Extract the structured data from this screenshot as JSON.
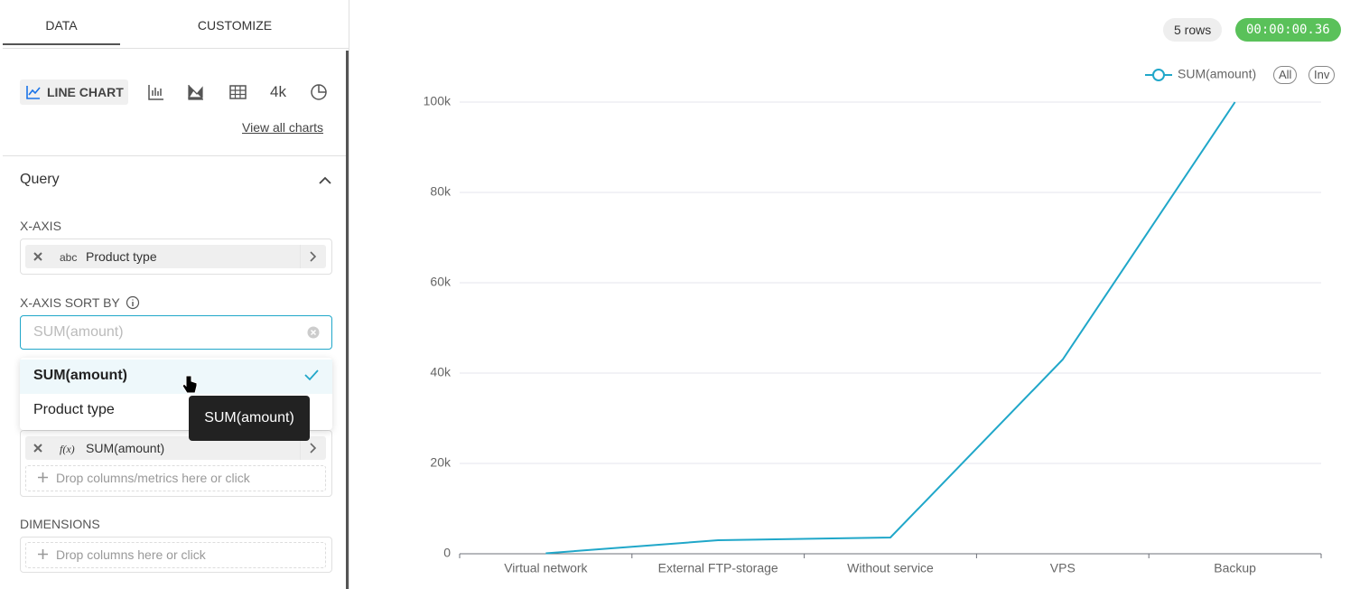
{
  "tabs": [
    "DATA",
    "CUSTOMIZE"
  ],
  "chart_picker": {
    "active": "LINE CHART",
    "other": "4k",
    "view_all": "View all charts"
  },
  "query": {
    "title": "Query",
    "x_axis_label": "X-AXIS",
    "x_axis_type": "abc",
    "x_axis_value": "Product type",
    "sort_label": "X-AXIS SORT BY",
    "sort_placeholder": "SUM(amount)",
    "sort_options": [
      "SUM(amount)",
      "Product type"
    ],
    "tooltip": "SUM(amount)",
    "metric_type": "f(x)",
    "metric": "SUM(amount)",
    "drop_metrics": "Drop columns/metrics here or click",
    "dimensions_label": "DIMENSIONS",
    "drop_dimensions": "Drop columns here or click"
  },
  "status": {
    "rows": "5 rows",
    "time": "00:00:00.36"
  },
  "legend_buttons": [
    "All",
    "Inv"
  ],
  "chart_data": {
    "type": "line",
    "categories": [
      "Virtual network",
      "External FTP-storage",
      "Without service",
      "VPS",
      "Backup"
    ],
    "series": [
      {
        "name": "SUM(amount)",
        "color": "#20a7c9",
        "values": [
          100,
          3000,
          3600,
          43000,
          100000
        ]
      }
    ],
    "ylim": [
      0,
      100000
    ],
    "yticks": [
      0,
      {
        "value": 20000,
        "label": "20k"
      },
      {
        "value": 40000,
        "label": "40k"
      },
      {
        "value": 60000,
        "label": "60k"
      },
      {
        "value": 80000,
        "label": "80k"
      },
      {
        "value": 100000,
        "label": "100k"
      }
    ],
    "grid": true
  }
}
